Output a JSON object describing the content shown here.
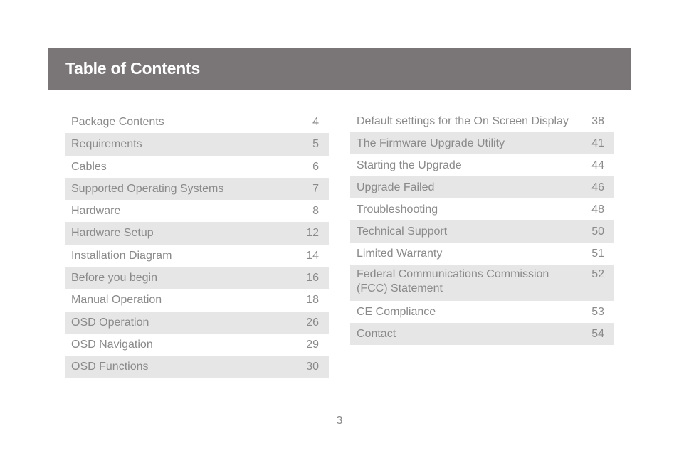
{
  "header": {
    "title": "Table of Contents"
  },
  "toc_left": [
    {
      "label": "Package Contents",
      "page": "4"
    },
    {
      "label": "Requirements",
      "page": "5"
    },
    {
      "label": "Cables",
      "page": "6"
    },
    {
      "label": "Supported Operating Systems",
      "page": "7"
    },
    {
      "label": "Hardware",
      "page": "8"
    },
    {
      "label": "Hardware Setup",
      "page": "12"
    },
    {
      "label": "Installation Diagram",
      "page": "14"
    },
    {
      "label": "Before you begin",
      "page": "16"
    },
    {
      "label": "Manual Operation",
      "page": "18"
    },
    {
      "label": "OSD Operation",
      "page": "26"
    },
    {
      "label": "OSD Navigation",
      "page": "29"
    },
    {
      "label": "OSD Functions",
      "page": "30"
    }
  ],
  "toc_right": [
    {
      "label": "Default settings for the On Screen Display",
      "page": "38"
    },
    {
      "label": "The Firmware Upgrade Utility",
      "page": "41"
    },
    {
      "label": "Starting the Upgrade",
      "page": "44"
    },
    {
      "label": "Upgrade Failed",
      "page": "46"
    },
    {
      "label": "Troubleshooting",
      "page": "48"
    },
    {
      "label": "Technical Support",
      "page": "50"
    },
    {
      "label": "Limited Warranty",
      "page": "51"
    },
    {
      "label": "Federal Communications Commission (FCC) Statement",
      "page": "52"
    },
    {
      "label": "CE Compliance",
      "page": "53"
    },
    {
      "label": "Contact",
      "page": "54"
    }
  ],
  "footer": {
    "page_number": "3"
  },
  "colors": {
    "header_bg": "#7a7677",
    "row_shade": "#e6e6e6",
    "text": "#8a8a8a"
  }
}
